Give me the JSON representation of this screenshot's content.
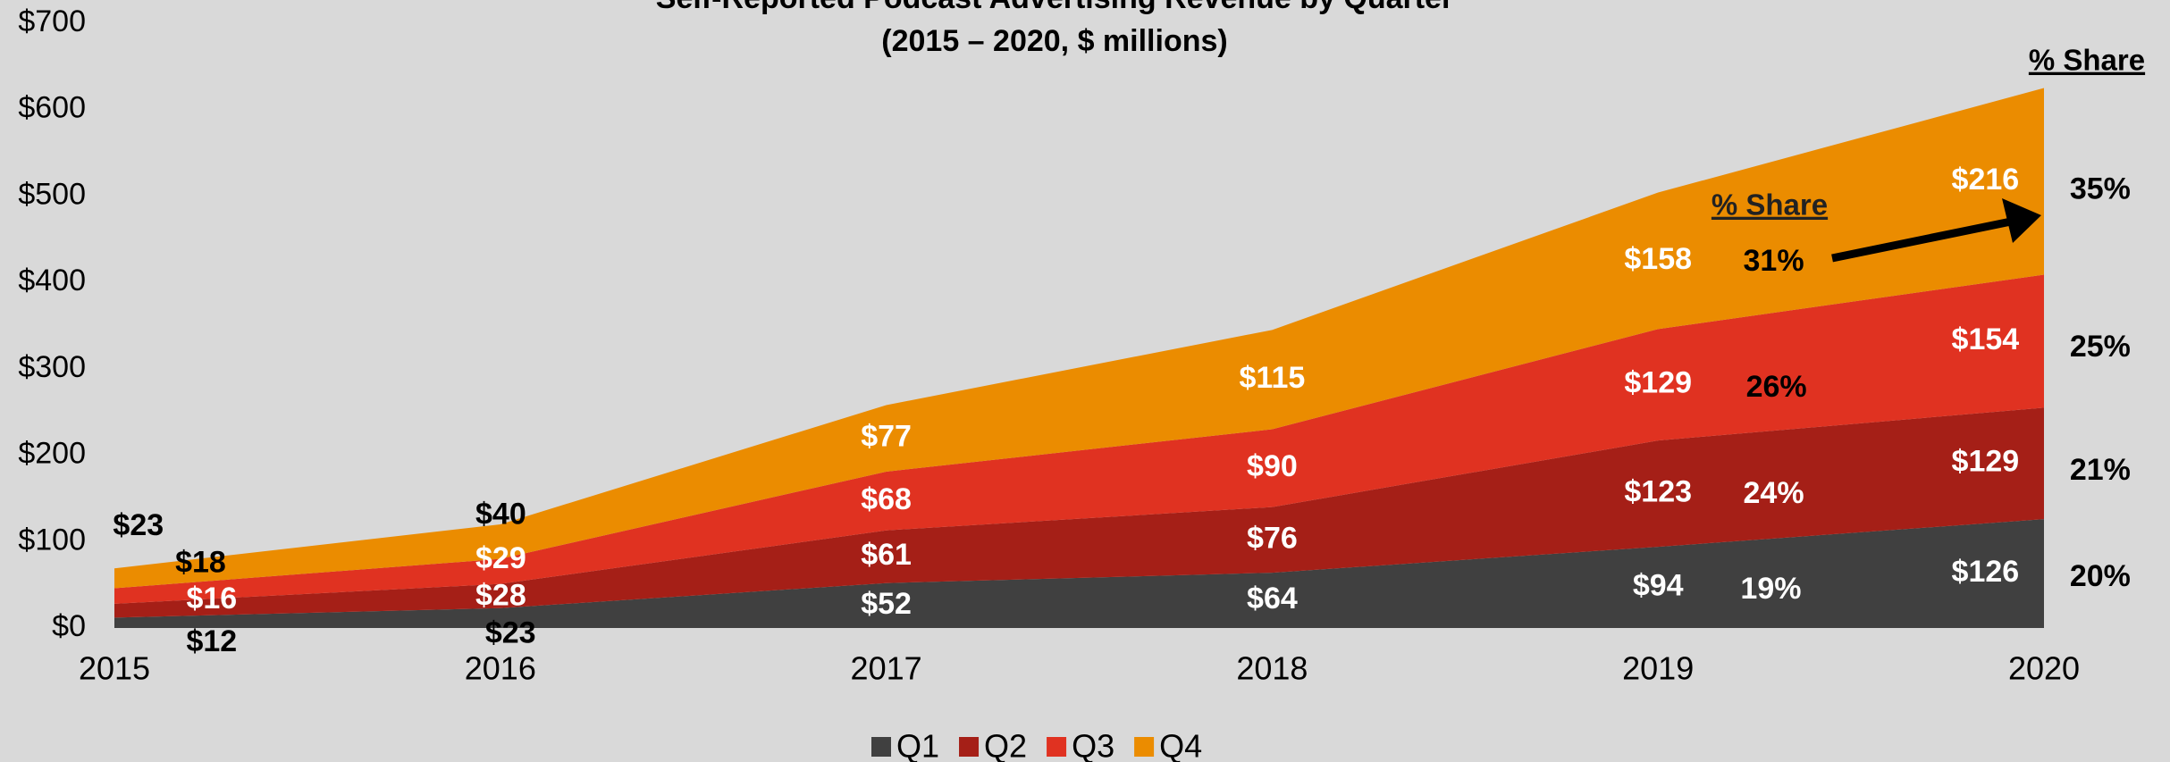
{
  "chart_data": {
    "type": "stacked_area",
    "title": "Self-Reported Podcast Advertising Revenue by Quarter",
    "subtitle": "(2015 – 2020, $ millions)",
    "x": [
      2015,
      2016,
      2017,
      2018,
      2019,
      2020
    ],
    "xlim": [
      2015,
      2020
    ],
    "xticks": [
      2015,
      2016,
      2017,
      2018,
      2019,
      2020
    ],
    "ylim": [
      0,
      700
    ],
    "yticks": [
      {
        "value": 0,
        "label": "$0"
      },
      {
        "value": 100,
        "label": "$100"
      },
      {
        "value": 200,
        "label": "$200"
      },
      {
        "value": 300,
        "label": "$300"
      },
      {
        "value": 400,
        "label": "$400"
      },
      {
        "value": 500,
        "label": "$500"
      },
      {
        "value": 600,
        "label": "$600"
      },
      {
        "value": 700,
        "label": "$700"
      }
    ],
    "grid": false,
    "legend": "bottom",
    "series": [
      {
        "name": "Q1",
        "color": "#404040",
        "values": [
          12,
          23,
          52,
          64,
          94,
          126
        ],
        "value_labels": [
          "$12",
          "$23",
          "$52",
          "$64",
          "$94",
          "$126"
        ]
      },
      {
        "name": "Q2",
        "color": "#a51f17",
        "values": [
          16,
          28,
          61,
          76,
          123,
          129
        ],
        "value_labels": [
          "$16",
          "$28",
          "$61",
          "$76",
          "$123",
          "$129"
        ]
      },
      {
        "name": "Q3",
        "color": "#e03221",
        "values": [
          18,
          29,
          68,
          90,
          129,
          154
        ],
        "value_labels": [
          "$18",
          "$29",
          "$68",
          "$90",
          "$129",
          "$154"
        ]
      },
      {
        "name": "Q4",
        "color": "#eb8c00",
        "values": [
          23,
          40,
          77,
          115,
          158,
          216
        ],
        "value_labels": [
          "$23",
          "$40",
          "$77",
          "$115",
          "$158",
          "$216"
        ]
      }
    ],
    "annotations": {
      "share_header_2019": "% Share",
      "share_header_2020": "% Share",
      "share_2019": [
        "19%",
        "24%",
        "26%",
        "31%"
      ],
      "share_2020": [
        "20%",
        "21%",
        "25%",
        "35%"
      ]
    }
  }
}
